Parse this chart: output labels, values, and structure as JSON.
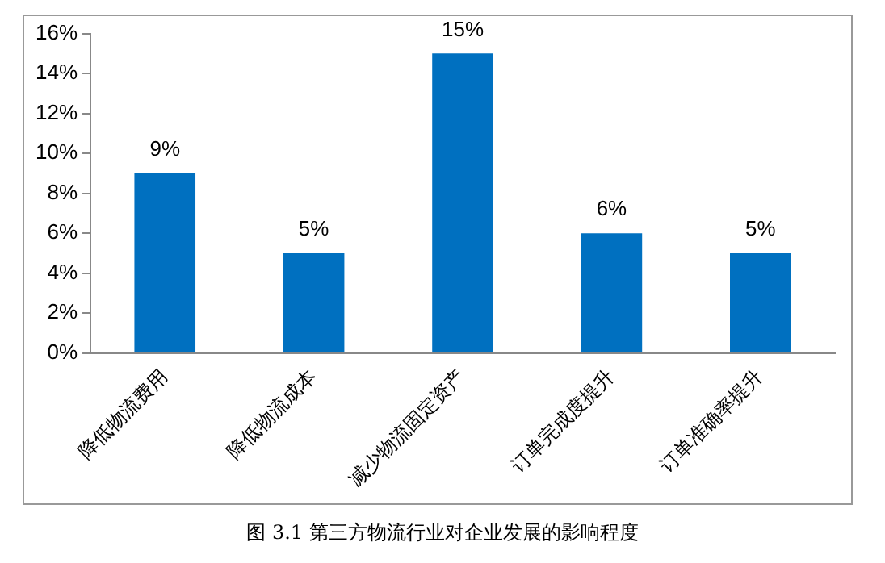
{
  "chart_data": {
    "type": "bar",
    "categories": [
      "降低物流费用",
      "降低物流成本",
      "减少物流固定资产",
      "订单完成度提升",
      "订单准确率提升"
    ],
    "values": [
      9,
      5,
      15,
      6,
      5
    ],
    "value_labels": [
      "9%",
      "5%",
      "15%",
      "6%",
      "5%"
    ],
    "color": "#0070c0",
    "ylim": [
      0,
      16
    ],
    "yticks": [
      {
        "value": 0,
        "label": "0%"
      },
      {
        "value": 2,
        "label": "2%"
      },
      {
        "value": 4,
        "label": "4%"
      },
      {
        "value": 6,
        "label": "6%"
      },
      {
        "value": 8,
        "label": "8%"
      },
      {
        "value": 10,
        "label": "10%"
      },
      {
        "value": 12,
        "label": "12%"
      },
      {
        "value": 14,
        "label": "14%"
      },
      {
        "value": 16,
        "label": "16%"
      }
    ],
    "grid": false,
    "legend": false,
    "annotations": [
      "图 3.1 第三方物流行业对企业发展的影响程度"
    ]
  }
}
